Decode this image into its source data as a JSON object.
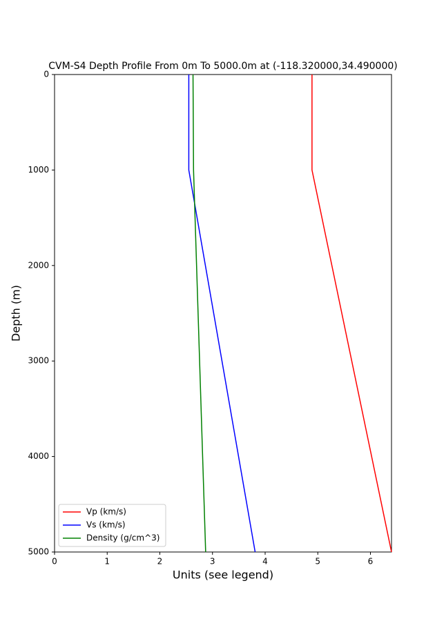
{
  "chart_data": {
    "type": "line",
    "title": "CVM-S4 Depth Profile From 0m To 5000.0m at (-118.320000,34.490000)",
    "xlabel": "Units (see legend)",
    "ylabel": "Depth (m)",
    "y": [
      0,
      1000,
      5000
    ],
    "series": [
      {
        "name": "Vp (km/s)",
        "color": "#ff0000",
        "values": [
          4.89,
          4.89,
          6.4
        ]
      },
      {
        "name": "Vs (km/s)",
        "color": "#0000ff",
        "values": [
          2.55,
          2.55,
          3.81
        ]
      },
      {
        "name": "Density (g/cm^3)",
        "color": "#008000",
        "values": [
          2.63,
          2.64,
          2.87
        ]
      }
    ],
    "xlim": [
      0,
      6.4
    ],
    "ylim": [
      5000,
      0
    ],
    "xticks": [
      0,
      1,
      2,
      3,
      4,
      5,
      6
    ],
    "yticks": [
      0,
      1000,
      2000,
      3000,
      4000,
      5000
    ],
    "legend": "lower left"
  }
}
